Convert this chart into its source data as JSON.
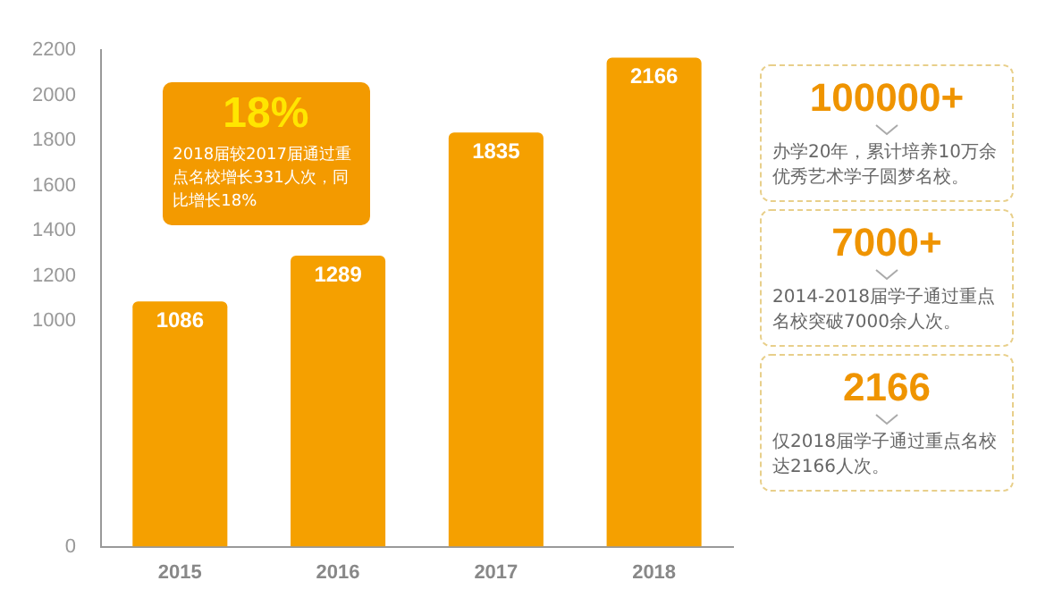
{
  "chart_data": [
    {
      "type": "bar",
      "categories": [
        "2015",
        "2016",
        "2017",
        "2018"
      ],
      "values": [
        1086,
        1289,
        1835,
        2166
      ],
      "color": "#f5a000",
      "ylim": [
        0,
        2200
      ],
      "yticks": [
        0,
        1000,
        1200,
        1400,
        1600,
        1800,
        2000,
        2200
      ],
      "data_labels": true,
      "grid": false,
      "legend": false,
      "annotations": [
        "18%",
        "2018届较2017届通过重点名校增长331人次，同比增长18%"
      ]
    },
    {
      "type": "other",
      "annotations": [
        "100000+",
        "办学20年，累计培养10万余优秀艺术学子圆梦名校。",
        "7000+",
        "2014-2018届学子通过重点名校突破7000余人次。",
        "2166",
        "仅2018届学子通过重点名校达2166人次。"
      ]
    }
  ]
}
